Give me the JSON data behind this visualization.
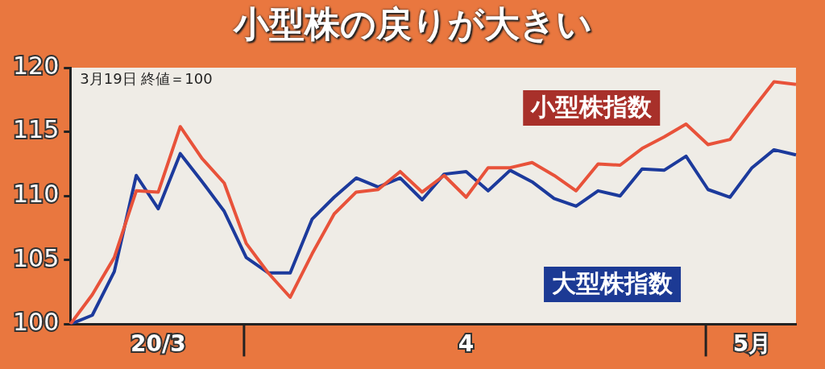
{
  "chart_data": {
    "type": "line",
    "title": "小型株の戻りが大きい",
    "annotations": [
      "3月19日 終値＝100"
    ],
    "categories": [
      null,
      null,
      null,
      null,
      "20/3",
      null,
      null,
      null,
      null,
      null,
      null,
      null,
      null,
      null,
      null,
      null,
      null,
      null,
      "4",
      null,
      null,
      null,
      null,
      null,
      null,
      null,
      null,
      null,
      null,
      null,
      null,
      "5月",
      null,
      null
    ],
    "series": [
      {
        "name": "小型株指数",
        "color": "#e8523a",
        "values": [
          100,
          102.3,
          105.2,
          110.4,
          110.3,
          115.4,
          112.9,
          111.0,
          106.3,
          104.0,
          102.1,
          105.5,
          108.6,
          110.3,
          110.5,
          111.9,
          110.3,
          111.6,
          109.9,
          112.2,
          112.2,
          112.6,
          111.6,
          110.4,
          112.5,
          112.4,
          113.7,
          114.6,
          115.6,
          114.0,
          114.4,
          116.7,
          118.9,
          118.7
        ]
      },
      {
        "name": "大型株指数",
        "color": "#1c3a9c",
        "values": [
          100,
          100.7,
          104.1,
          111.6,
          109.0,
          113.3,
          111.1,
          108.8,
          105.2,
          104.0,
          104.0,
          108.2,
          109.9,
          111.4,
          110.7,
          111.4,
          109.7,
          111.7,
          111.9,
          110.4,
          112.0,
          111.1,
          109.8,
          109.2,
          110.4,
          110.0,
          112.1,
          112.0,
          113.1,
          110.5,
          109.9,
          112.2,
          113.6,
          113.2
        ]
      }
    ],
    "ylim": [
      100,
      120
    ],
    "yticks": [
      100,
      105,
      110,
      115,
      120
    ],
    "grid": false,
    "legend": false,
    "marker": "none"
  }
}
